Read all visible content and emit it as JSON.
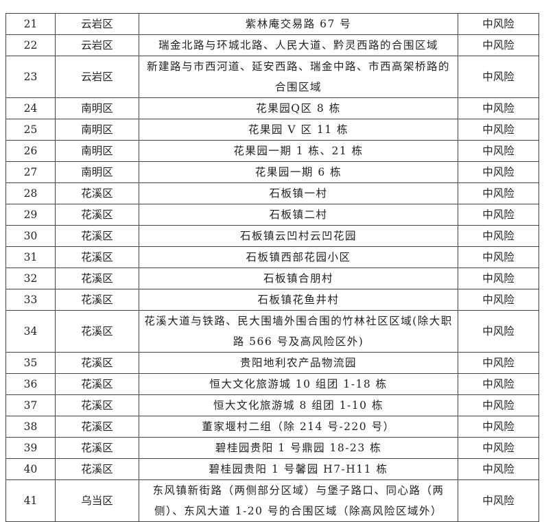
{
  "rows": [
    {
      "no": "21",
      "district": "云岩区",
      "area": "紫林庵交易路 67 号",
      "risk": "中风险"
    },
    {
      "no": "22",
      "district": "云岩区",
      "area": "瑞金北路与环城北路、人民大道、黔灵西路的合围区域",
      "risk": "中风险"
    },
    {
      "no": "23",
      "district": "云岩区",
      "area": "新建路与市西河道、延安西路、瑞金中路、市西高架桥路的合围区域",
      "risk": "中风险",
      "tall": true
    },
    {
      "no": "24",
      "district": "南明区",
      "area": "花果园Q区 8 栋",
      "risk": "中风险"
    },
    {
      "no": "25",
      "district": "南明区",
      "area": "花果园 V 区 11 栋",
      "risk": "中风险"
    },
    {
      "no": "26",
      "district": "南明区",
      "area": "花果园一期 1 栋、21 栋",
      "risk": "中风险"
    },
    {
      "no": "27",
      "district": "南明区",
      "area": "花果园一期 6 栋",
      "risk": "中风险"
    },
    {
      "no": "28",
      "district": "花溪区",
      "area": "石板镇一村",
      "risk": "中风险"
    },
    {
      "no": "29",
      "district": "花溪区",
      "area": "石板镇二村",
      "risk": "中风险"
    },
    {
      "no": "30",
      "district": "花溪区",
      "area": "石板镇云凹村云凹花园",
      "risk": "中风险"
    },
    {
      "no": "31",
      "district": "花溪区",
      "area": "石板镇西部花园小区",
      "risk": "中风险"
    },
    {
      "no": "32",
      "district": "花溪区",
      "area": "石板镇合朋村",
      "risk": "中风险"
    },
    {
      "no": "33",
      "district": "花溪区",
      "area": "石板镇花鱼井村",
      "risk": "中风险"
    },
    {
      "no": "34",
      "district": "花溪区",
      "area": "花溪大道与铁路、民大围墙外围合围的竹林社区区域(除大职路 566 号及高风险区外)",
      "risk": "中风险",
      "tall": true
    },
    {
      "no": "35",
      "district": "花溪区",
      "area": "贵阳地利农产品物流园",
      "risk": "中风险"
    },
    {
      "no": "36",
      "district": "花溪区",
      "area": "恒大文化旅游城 10 组团 1-18 栋",
      "risk": "中风险"
    },
    {
      "no": "37",
      "district": "花溪区",
      "area": "恒大文化旅游城 8 组团 1-10 栋",
      "risk": "中风险"
    },
    {
      "no": "38",
      "district": "花溪区",
      "area": "董家堰村二组（除 214 号-220 号）",
      "risk": "中风险"
    },
    {
      "no": "39",
      "district": "花溪区",
      "area": "碧桂园贵阳 1 号鼎园 18-23 栋",
      "risk": "中风险"
    },
    {
      "no": "40",
      "district": "花溪区",
      "area": "碧桂园贵阳 1 号馨园 H7-H11 栋",
      "risk": "中风险"
    },
    {
      "no": "41",
      "district": "乌当区",
      "area": "东风镇新街路（两侧部分区域）与堡子路口、同心路（两侧）、东风大道 1-20 号的合围区域（除高风险区域外）",
      "risk": "中风险",
      "tall": true
    }
  ]
}
